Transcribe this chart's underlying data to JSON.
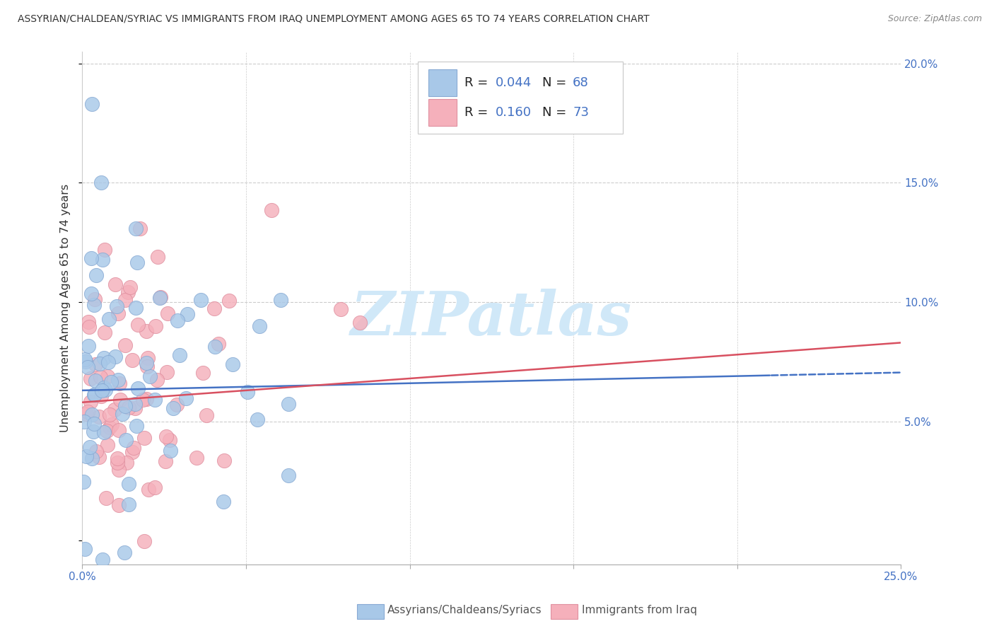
{
  "title": "ASSYRIAN/CHALDEAN/SYRIAC VS IMMIGRANTS FROM IRAQ UNEMPLOYMENT AMONG AGES 65 TO 74 YEARS CORRELATION CHART",
  "source": "Source: ZipAtlas.com",
  "ylabel": "Unemployment Among Ages 65 to 74 years",
  "xlim": [
    0.0,
    0.25
  ],
  "ylim": [
    -0.01,
    0.205
  ],
  "ytick_vals": [
    0.0,
    0.05,
    0.1,
    0.15,
    0.2
  ],
  "ytick_labels": [
    "",
    "5.0%",
    "10.0%",
    "15.0%",
    "20.0%"
  ],
  "xtick_vals": [
    0.0,
    0.05,
    0.1,
    0.15,
    0.2,
    0.25
  ],
  "xtick_labels": [
    "0.0%",
    "",
    "",
    "",
    "",
    "25.0%"
  ],
  "blue_R": 0.044,
  "blue_N": 68,
  "pink_R": 0.16,
  "pink_N": 73,
  "blue_color": "#a8c8e8",
  "blue_edge": "#88aad4",
  "pink_color": "#f5b0bb",
  "pink_edge": "#e090a0",
  "blue_line_color": "#4472c4",
  "pink_line_color": "#d85060",
  "tick_color": "#4472c4",
  "grid_color": "#cccccc",
  "title_color": "#333333",
  "source_color": "#888888",
  "ylabel_color": "#333333",
  "watermark_text": "ZIPatlas",
  "watermark_color": "#d0e8f8",
  "legend_label_blue": "Assyrians/Chaldeans/Syriacs",
  "legend_label_pink": "Immigrants from Iraq",
  "legend_edge_color": "#cccccc",
  "label_color": "#555555"
}
